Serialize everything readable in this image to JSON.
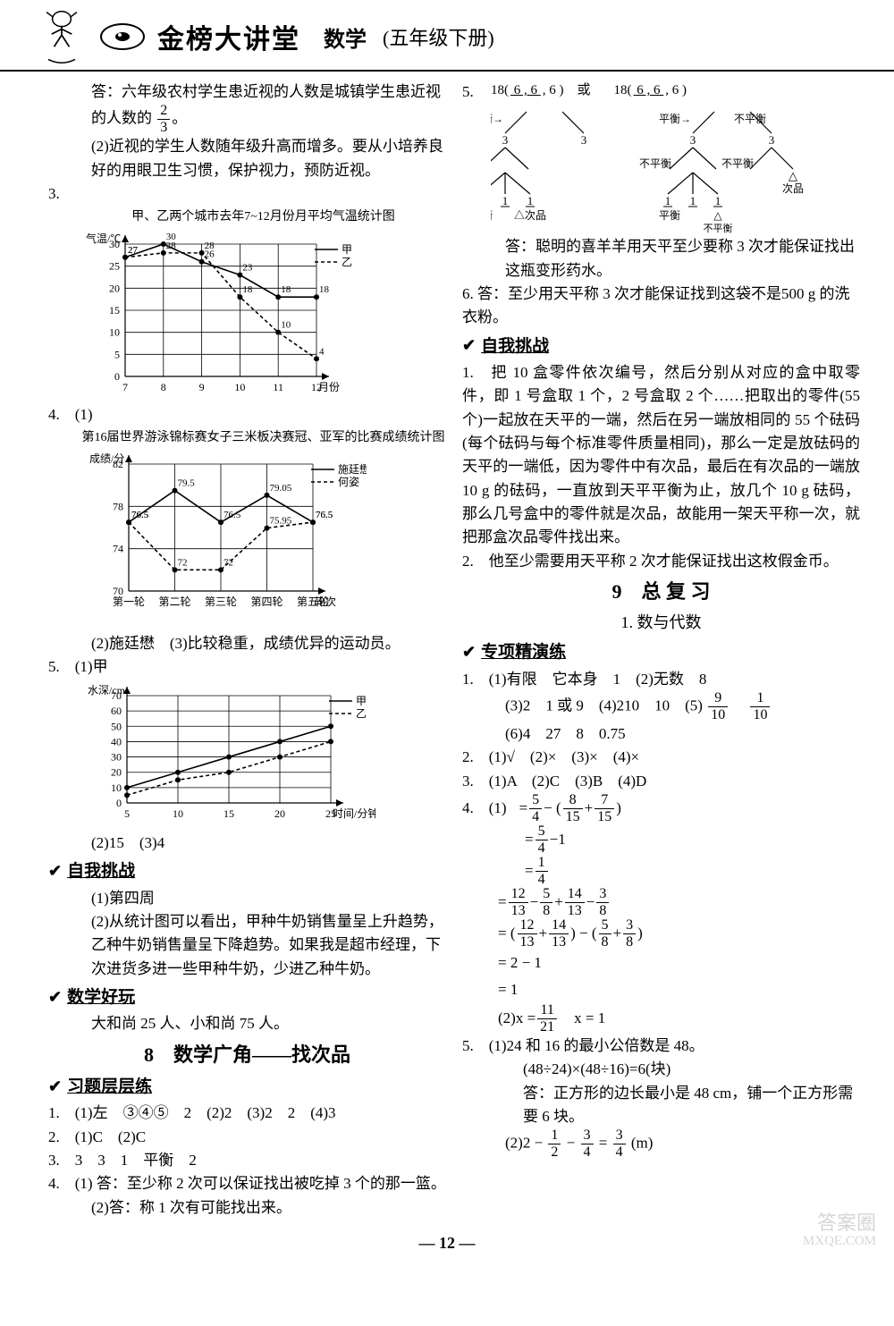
{
  "header": {
    "series": "金榜大讲堂",
    "subject": "数学",
    "grade": "(五年级下册)"
  },
  "left": {
    "ans_line": "答：六年级农村学生患近视的人数是城镇学生患近视的人数的",
    "frac1_num": "2",
    "frac1_den": "3",
    "period": "。",
    "item2": "(2)近视的学生人数随年级升高而增多。要从小培养良好的用眼卫生习惯，保护视力，预防近视。",
    "q3": "3.",
    "chart3": {
      "title": "甲、乙两个城市去年7~12月份月平均气温统计图",
      "categories": [
        "7",
        "8",
        "9",
        "10",
        "11",
        "12"
      ],
      "series_jia": [
        27,
        30,
        26,
        23,
        18,
        18
      ],
      "series_yi": [
        27,
        28,
        28,
        18,
        10,
        4
      ],
      "ylim": [
        0,
        30
      ],
      "ytick_step": 5,
      "ylabel": "气温/℃",
      "xlabel": "月份",
      "legend": [
        "甲",
        "乙"
      ],
      "color_line": "#000",
      "grid_color": "#000",
      "bg": "#ffffff"
    },
    "q4": "4.　(1)",
    "chart4": {
      "title": "第16届世界游泳锦标赛女子三米板决赛冠、亚军的比赛成绩统计图",
      "categories": [
        "第一轮",
        "第二轮",
        "第三轮",
        "第四轮",
        "第五轮"
      ],
      "series_a": [
        76.5,
        79.5,
        76.5,
        79.05,
        76.5
      ],
      "series_b": [
        76.5,
        72,
        72,
        75.95,
        76.5
      ],
      "ylim": [
        70,
        82
      ],
      "ytick_step": 4,
      "ylabel": "成绩/分",
      "xlabel": "轮次",
      "legend": [
        "施廷懋",
        "何姿"
      ],
      "color_line": "#000",
      "grid_color": "#000",
      "bg": "#ffffff"
    },
    "q4_2": "(2)施廷懋　(3)比较稳重，成绩优异的运动员。",
    "q5": "5.　(1)甲",
    "chart5": {
      "categories": [
        "5",
        "10",
        "15",
        "20",
        "25"
      ],
      "series_jia": [
        10,
        20,
        30,
        40,
        50
      ],
      "series_yi": [
        5,
        15,
        20,
        30,
        40
      ],
      "ylim": [
        0,
        70
      ],
      "ytick_step": 10,
      "ylabel": "水深/cm",
      "xlabel": "时间/分钟",
      "legend": [
        "甲",
        "乙"
      ],
      "grid_color": "#000",
      "bg": "#ffffff"
    },
    "q5_ans": "(2)15　(3)4",
    "sec_challenge": "自我挑战",
    "c1": "(1)第四周",
    "c2": "(2)从统计图可以看出，甲种牛奶销售量呈上升趋势，乙种牛奶销售量呈下降趋势。如果我是超市经理，下次进货多进一些甲种牛奶，少进乙种牛奶。",
    "sec_fun": "数学好玩",
    "fun1": "大和尚 25 人、小和尚 75 人。",
    "chapter8": "8　数学广角——找次品",
    "sec_layer": "习题层层练",
    "l1": "1.　(1)左　③④⑤　2　(2)2　(3)2　2　(4)3",
    "l2": "2.　(1)C　(2)C",
    "l3": "3.　3　3　1　平衡　2",
    "l4": "4.　(1) 答：至少称 2 次可以保证找出被吃掉 3 个的那一篮。",
    "l4b": "(2)答：称 1 次有可能找出来。"
  },
  "right": {
    "q5_label": "5.",
    "tree_left_head": "18( 6 , 6 , 6 )　或",
    "tree_right_head": "18( 6 , 6 , 6 )",
    "tree": {
      "labels": {
        "bal": "平衡",
        "unbal": "不平衡",
        "defect": "△次品",
        "ci": "次品"
      },
      "left": {
        "root": "18(6,6,6)",
        "l1": "3",
        "l2": "3",
        "leaf": [
          "1",
          "1",
          "1"
        ]
      },
      "right": {
        "root": "18(6,6,6)",
        "l1": "3",
        "l2": "3",
        "leaf": [
          "1",
          "1",
          "1"
        ]
      }
    },
    "q5_ans": "答：聪明的喜羊羊用天平至少要称 3 次才能保证找出这瓶变形药水。",
    "q6": "6. 答：至少用天平称 3 次才能保证找到这袋不是500 g 的洗衣粉。",
    "sec_challenge": "自我挑战",
    "c1": "1.　把 10 盒零件依次编号，然后分别从对应的盒中取零件，即 1 号盒取 1 个，2 号盒取 2 个……把取出的零件(55 个)一起放在天平的一端，然后在另一端放相同的 55 个砝码(每个砝码与每个标准零件质量相同)，那么一定是放砝码的天平的一端低，因为零件中有次品，最后在有次品的一端放 10 g 的砝码，一直放到天平平衡为止，放几个 10 g 砝码，那么几号盒中的零件就是次品，故能用一架天平称一次，就把那盒次品零件找出来。",
    "c2": "2.　他至少需要用天平称 2 次才能保证找出这枚假金币。",
    "chapter9": "9　总 复 习",
    "chapter9_sub": "1. 数与代数",
    "sec_precise": "专项精演练",
    "p1a": "1.　(1)有限　它本身　1　(2)无数　8",
    "p1b_pre": "(3)2　1 或 9　(4)210　10　(5)",
    "p1b_f1_num": "9",
    "p1b_f1_den": "10",
    "p1b_f2_num": "1",
    "p1b_f2_den": "10",
    "p1c": "(6)4　27　8　0.75",
    "p2": "2.　(1)√　(2)×　(3)×　(4)×",
    "p3": "3.　(1)A　(2)C　(3)B　(4)D",
    "p4_label": "4.　(1)",
    "eq1": {
      "a_num": "5",
      "a_den": "4",
      "b_num": "8",
      "b_den": "15",
      "c_num": "7",
      "c_den": "15"
    },
    "eq2": {
      "a_num": "5",
      "a_den": "4",
      "b": "1"
    },
    "eq3": {
      "a_num": "1",
      "a_den": "4"
    },
    "eq4": {
      "a_num": "12",
      "a_den": "13",
      "b_num": "5",
      "b_den": "8",
      "c_num": "14",
      "c_den": "13",
      "d_num": "3",
      "d_den": "8"
    },
    "eq5": {
      "a_num": "12",
      "a_den": "13",
      "b_num": "14",
      "b_den": "13",
      "c_num": "5",
      "c_den": "8",
      "d_num": "3",
      "d_den": "8"
    },
    "eq6": "= 2 − 1",
    "eq7": "= 1",
    "p4_2_pre": "(2)x =",
    "p4_2_f_num": "11",
    "p4_2_f_den": "21",
    "p4_2_b": "　x = 1",
    "p5a": "5.　(1)24 和 16 的最小公倍数是 48。",
    "p5b": "(48÷24)×(48÷16)=6(块)",
    "p5c": "答：正方形的边长最小是 48 cm，铺一个正方形需要 6 块。",
    "p5d_pre": "(2)2 −",
    "p5d_f1_num": "1",
    "p5d_f1_den": "2",
    "p5d_mid": " − ",
    "p5d_f2_num": "3",
    "p5d_f2_den": "4",
    "p5d_eq": " = ",
    "p5d_f3_num": "3",
    "p5d_f3_den": "4",
    "p5d_unit": "(m)"
  },
  "page_number": "— 12 —",
  "watermark": {
    "l1": "答案圈",
    "l2": "MXQE.COM"
  }
}
